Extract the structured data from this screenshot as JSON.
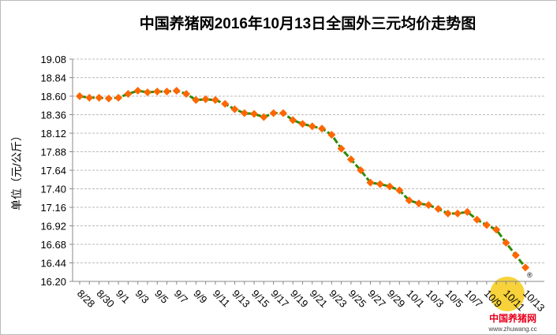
{
  "chart_data": {
    "type": "line",
    "title": "中国养猪网2016年10月13日全国外三元均价走势图",
    "y_label": "单位（元/公斤）",
    "logo_text": "中国养猪网",
    "logo_url": "www.zhuwang.cc",
    "logo_mark": "®",
    "categories": [
      "8/28",
      null,
      "8/30",
      null,
      "9/1",
      null,
      "9/3",
      null,
      "9/5",
      null,
      "9/7",
      null,
      "9/9",
      null,
      "9/11",
      null,
      "9/13",
      null,
      "9/15",
      null,
      "9/17",
      null,
      "9/19",
      null,
      "9/21",
      null,
      "9/23",
      null,
      "9/25",
      null,
      "9/27",
      null,
      "9/29",
      null,
      "10/1",
      null,
      "10/3",
      null,
      "10/5",
      null,
      "10/7",
      null,
      "10/9",
      null,
      "10/11",
      null,
      "10/13"
    ],
    "series": [
      {
        "name": "外三元均价",
        "color": "#ff6600",
        "line_color": "#2e8b00",
        "values": [
          18.6,
          18.58,
          18.58,
          18.57,
          18.58,
          18.63,
          18.67,
          18.65,
          18.66,
          18.66,
          18.67,
          18.63,
          18.55,
          18.56,
          18.55,
          18.5,
          18.43,
          18.38,
          18.37,
          18.33,
          18.38,
          18.38,
          18.29,
          18.24,
          18.21,
          18.18,
          18.1,
          17.92,
          17.78,
          17.64,
          17.48,
          17.46,
          17.43,
          17.38,
          17.25,
          17.21,
          17.19,
          17.14,
          17.08,
          17.08,
          17.1,
          17.0,
          16.93,
          16.87,
          16.7,
          16.54,
          16.38
        ]
      }
    ],
    "ylim": [
      16.2,
      19.08
    ],
    "yticks": [
      {
        "value": 16.2,
        "label": "16.20"
      },
      16.44,
      16.68,
      16.92,
      17.16,
      {
        "value": 17.4,
        "label": "17.40"
      },
      17.64,
      17.88,
      18.12,
      18.36,
      {
        "value": 18.6,
        "label": "18.60"
      },
      18.84,
      19.08
    ],
    "grid": true
  }
}
